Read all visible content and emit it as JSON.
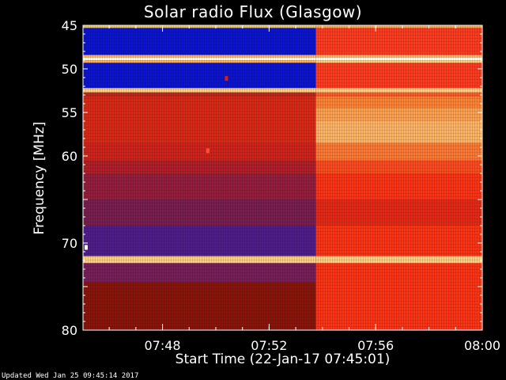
{
  "chart_data": {
    "type": "heatmap",
    "title": "Solar radio Flux (Glasgow)",
    "xlabel": "Start Time (22-Jan-17 07:45:01)",
    "ylabel": "Frequency [MHz]",
    "x_range": [
      "07:45:01",
      "08:00:00"
    ],
    "y_range": [
      45,
      80
    ],
    "y_ticks": [
      45,
      50,
      55,
      60,
      65,
      70,
      75,
      80
    ],
    "y_tick_labels": [
      "45",
      "50",
      "55",
      "60",
      "",
      "70",
      "",
      "80"
    ],
    "x_ticks": [
      "07:48",
      "07:52",
      "07:56",
      "08:00"
    ],
    "change_time": "07:53:45",
    "grid": false,
    "legend": "none",
    "colors": {
      "blue": "#0a14d2",
      "purple": "#5a1e8c",
      "dark_red": "#8c140a",
      "red": "#dc1e0a",
      "bright_red": "#ff3214",
      "orange": "#ff7828",
      "pale_orange": "#ffc878",
      "white": "#ffffff"
    },
    "bands": [
      {
        "from": 45.0,
        "to": 45.3,
        "before": "#e8c060",
        "after": "#ffa050"
      },
      {
        "from": 45.3,
        "to": 48.4,
        "before": "#0a14d2",
        "after": "#ff3a1e"
      },
      {
        "from": 48.4,
        "to": 48.7,
        "before": "#ffb060",
        "after": "#ffb060"
      },
      {
        "from": 48.7,
        "to": 49.0,
        "before": "#ffffff",
        "after": "#ffffff"
      },
      {
        "from": 49.0,
        "to": 49.3,
        "before": "#ffb060",
        "after": "#ffd080"
      },
      {
        "from": 49.3,
        "to": 52.2,
        "before": "#0a14d2",
        "after": "#ff3a1e"
      },
      {
        "from": 52.2,
        "to": 52.7,
        "before": "#ffd080",
        "after": "#ffd080"
      },
      {
        "from": 52.7,
        "to": 53.2,
        "before": "#c0281e",
        "after": "#ff5a28"
      },
      {
        "from": 53.2,
        "to": 54.5,
        "before": "#dc2814",
        "after": "#ff8232"
      },
      {
        "from": 54.5,
        "to": 56.0,
        "before": "#dc2814",
        "after": "#ffa050"
      },
      {
        "from": 56.0,
        "to": 58.5,
        "before": "#dc2814",
        "after": "#ffb464"
      },
      {
        "from": 58.5,
        "to": 60.5,
        "before": "#d2231a",
        "after": "#ff7832"
      },
      {
        "from": 60.5,
        "to": 62.0,
        "before": "#b41e28",
        "after": "#ff4a1e"
      },
      {
        "from": 62.0,
        "to": 65.0,
        "before": "#961e3c",
        "after": "#ff3214"
      },
      {
        "from": 65.0,
        "to": 68.0,
        "before": "#7a1e50",
        "after": "#e82814"
      },
      {
        "from": 68.0,
        "to": 71.5,
        "before": "#501e8c",
        "after": "#ff3214"
      },
      {
        "from": 71.5,
        "to": 72.3,
        "before": "#ffd080",
        "after": "#ffd080"
      },
      {
        "from": 72.3,
        "to": 74.5,
        "before": "#781e5a",
        "after": "#ff3214"
      },
      {
        "from": 74.5,
        "to": 80.0,
        "before": "#8c140a",
        "after": "#ff3214"
      }
    ],
    "spots": [
      {
        "time": "07:50:24",
        "freq": 51.1,
        "color": "#dc1e0a"
      },
      {
        "time": "07:49:42",
        "freq": 59.4,
        "color": "#ff5032"
      },
      {
        "time": "07:45:08",
        "freq": 70.5,
        "color": "#ffffff"
      }
    ]
  },
  "footer": {
    "updated": "Updated Wed Jan 25 09:45:14 2017"
  }
}
